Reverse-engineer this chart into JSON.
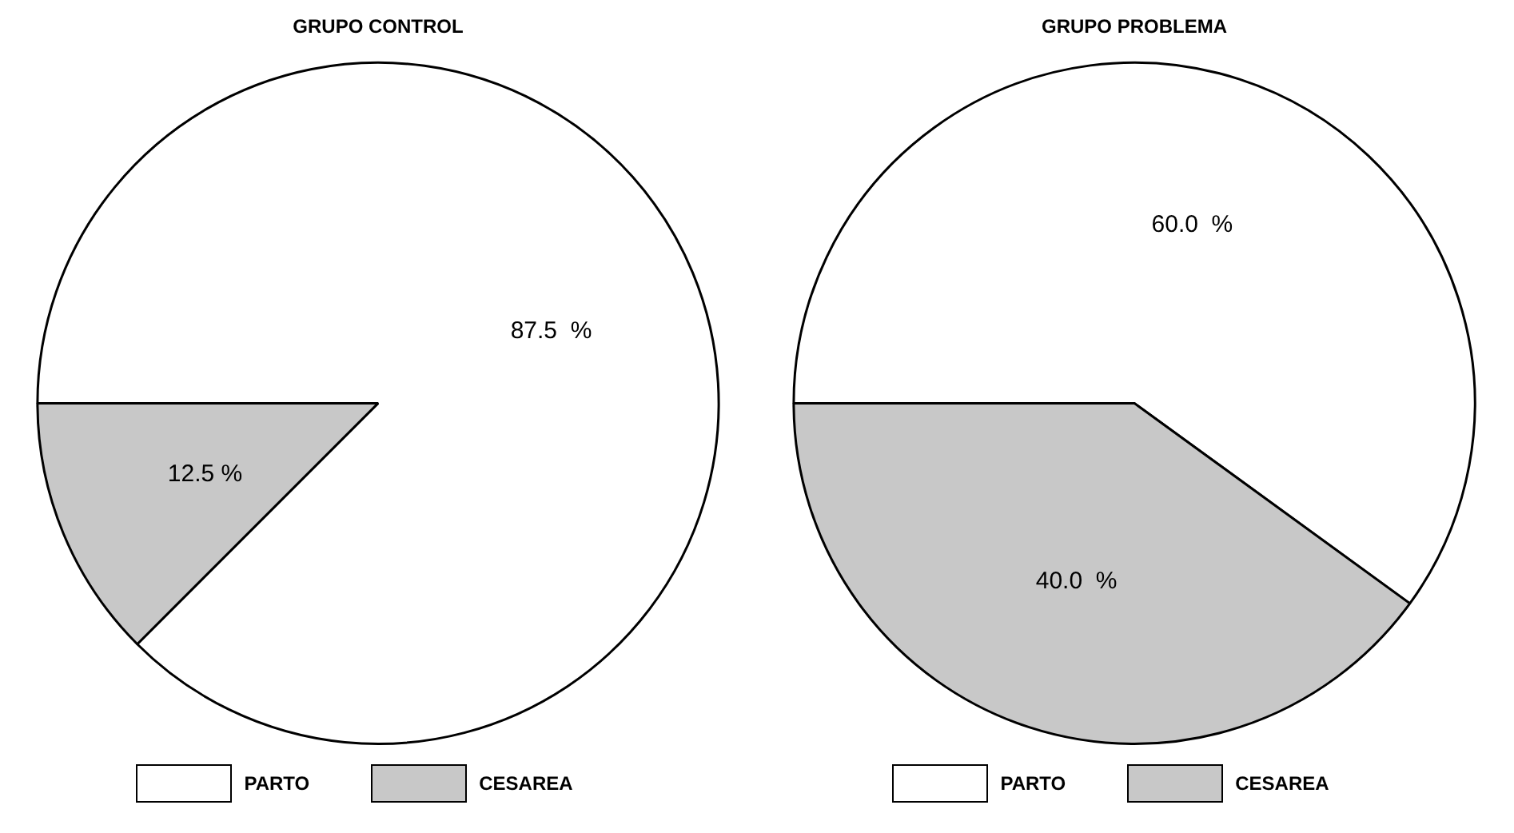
{
  "chart_data": [
    {
      "type": "pie",
      "title": "GRUPO CONTROL",
      "categories": [
        "PARTO",
        "CESAREA"
      ],
      "values": [
        87.5,
        12.5
      ],
      "colors": [
        "#ffffff",
        "#c8c8c8"
      ],
      "value_labels": [
        "87.5  %",
        "12.5 %"
      ],
      "legend": "bottom"
    },
    {
      "type": "pie",
      "title": "GRUPO PROBLEMA",
      "categories": [
        "PARTO",
        "CESAREA"
      ],
      "values": [
        60.0,
        40.0
      ],
      "colors": [
        "#ffffff",
        "#c8c8c8"
      ],
      "value_labels": [
        "60.0  %",
        "40.0  %"
      ],
      "legend": "bottom"
    }
  ]
}
